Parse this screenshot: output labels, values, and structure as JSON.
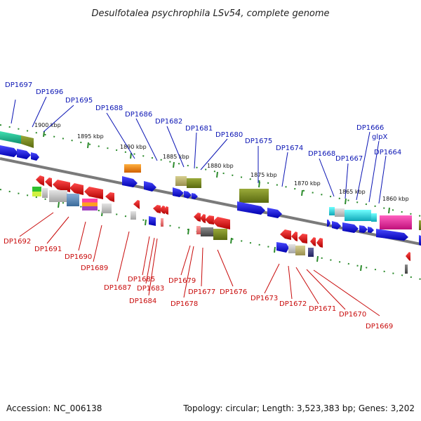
{
  "title": "Desulfotalea psychrophila LSv54, complete genome",
  "footer": {
    "accession": "Accession: NC_006138",
    "summary": "Topology: circular; Length: 3,523,383 bp; Genes: 3,202"
  },
  "scale_labels": [
    "1900 kbp",
    "1895 kbp",
    "1890 kbp",
    "1885 kbp",
    "1880 kbp",
    "1875 kbp",
    "1870 kbp",
    "1865 kbp",
    "1860 kbp"
  ],
  "labels_top": [
    "DP1697",
    "DP1696",
    "DP1695",
    "DP1688",
    "DP1686",
    "DP1682",
    "DP1681",
    "DP1680",
    "DP1675",
    "DP1674",
    "DP1668",
    "DP1667",
    "DP1666",
    "glpX",
    "DP1664"
  ],
  "labels_bottom": [
    "DP1692",
    "DP1691",
    "DP1690",
    "DP1689",
    "DP1687",
    "DP1685",
    "DP1683",
    "DP1684",
    "DP1679",
    "DP1678",
    "DP1677",
    "DP1676",
    "DP1673",
    "DP1672",
    "DP1671",
    "DP1670",
    "DP1669"
  ],
  "colors": {
    "backbone": "#7a7a7a",
    "tick": "#2a8a2a",
    "forward_strand": "#1010e0",
    "reverse_strand": "#e01010",
    "label_top": "#0a14b4",
    "label_bottom": "#c80a0a"
  }
}
